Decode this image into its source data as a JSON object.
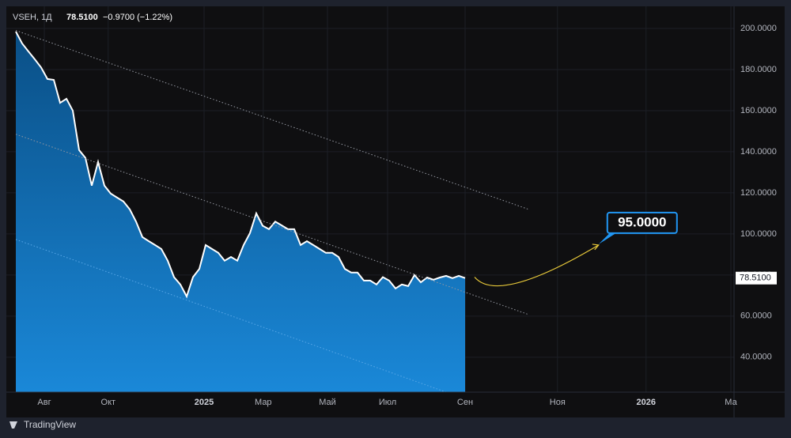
{
  "chart_data": {
    "type": "area",
    "symbol": "VSEH, 1Д",
    "last": "78.5100",
    "change": "−0.9700 (−1.22%)",
    "brand": "TradingView",
    "series": [
      {
        "name": "VSEH",
        "color": "#ffffff",
        "values": [
          198.5,
          192.7,
          188.8,
          185,
          181,
          175.4,
          175,
          163.8,
          165.8,
          160,
          140.8,
          137,
          123.5,
          135,
          123.5,
          119.6,
          117.7,
          115.8,
          112,
          106,
          98.5,
          96.5,
          94.6,
          92.7,
          87,
          79,
          75.4,
          69.6,
          79,
          83,
          94.6,
          92.7,
          90.8,
          87,
          88.8,
          87,
          94.6,
          100.4,
          110,
          104,
          102.3,
          106,
          104.2,
          102.3,
          102.3,
          94.6,
          96.5,
          94.6,
          92.7,
          90.8,
          90.8,
          88.8,
          83,
          81.2,
          81.2,
          77.3,
          77.3,
          75.4,
          79,
          77.3,
          73.5,
          75.4,
          74.6,
          80,
          76.5,
          78.8,
          77.7,
          78.8,
          79.6,
          78.5,
          79.6,
          78.51
        ]
      }
    ],
    "xlim": [
      0,
      113.5
    ],
    "ylim": [
      23,
      210
    ],
    "xticks": [
      {
        "value": 4.5,
        "label": "Авг"
      },
      {
        "value": 14.6,
        "label": "Окт"
      },
      {
        "value": 29.75,
        "label": "2025"
      },
      {
        "value": 39.1,
        "label": "Мар"
      },
      {
        "value": 49.25,
        "label": "Май"
      },
      {
        "value": 58.75,
        "label": "Июл"
      },
      {
        "value": 71,
        "label": "Сен"
      },
      {
        "value": 85.6,
        "label": "Ноя"
      },
      {
        "value": 99.6,
        "label": "2026"
      },
      {
        "value": 113,
        "label": "Ма"
      }
    ],
    "yticks": [
      {
        "value": 40,
        "label": "40.0000"
      },
      {
        "value": 60,
        "label": "60.0000"
      },
      {
        "value": 80,
        "label": "80.0000"
      },
      {
        "value": 100,
        "label": "100.0000"
      },
      {
        "value": 120,
        "label": "120.0000"
      },
      {
        "value": 140,
        "label": "140.0000"
      },
      {
        "value": 160,
        "label": "160.0000"
      },
      {
        "value": 180,
        "label": "180.0000"
      },
      {
        "value": 200,
        "label": "200.0000"
      }
    ],
    "price_marker": {
      "value": 78.51,
      "label": "78.5100"
    },
    "trendlines": [
      {
        "x": [
          0,
          81
        ],
        "y": [
          199,
          112
        ]
      },
      {
        "x": [
          0,
          81
        ],
        "y": [
          148.5,
          60.8
        ]
      },
      {
        "x": [
          0,
          68
        ],
        "y": [
          97.3,
          23
        ]
      }
    ],
    "arrow": {
      "x": [
        72.5,
        92.1
      ],
      "y": [
        79,
        94.6
      ]
    },
    "annotation": {
      "value": 95,
      "label": "95.0000",
      "x": 92.1
    },
    "grid": true
  }
}
